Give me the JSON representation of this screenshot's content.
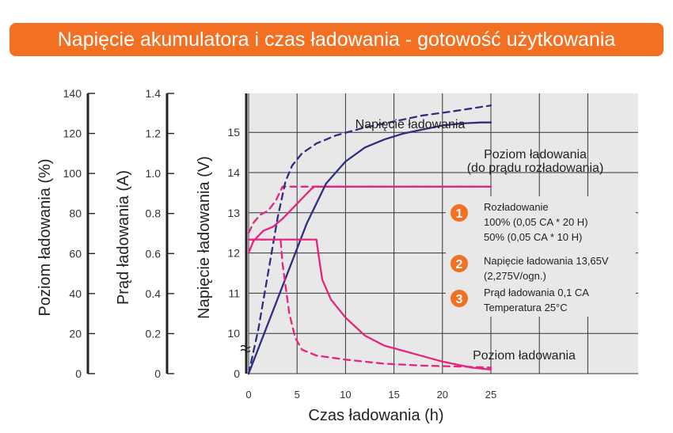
{
  "header": {
    "title": "Napięcie akumulatora i czas ładowania - gotowość użytkowania"
  },
  "colors": {
    "banner": "#f36f21",
    "magenta": "#e6247f",
    "navy": "#2e2f7f",
    "grid": "#e8e8e8",
    "badge": "#f36f21"
  },
  "chart_data": {
    "type": "line",
    "xlabel": "Czas ładowania (h)",
    "x_ticks": [
      "0",
      "5",
      "10",
      "15",
      "20",
      "25"
    ],
    "xlim": [
      0,
      25
    ],
    "axes": {
      "level": {
        "label": "Poziom ładowania (%)",
        "ticks": [
          "0",
          "20",
          "40",
          "60",
          "80",
          "100",
          "120",
          "140"
        ],
        "range": [
          0,
          140
        ]
      },
      "current": {
        "label": "Prąd ładowania (A)",
        "ticks": [
          "0",
          "0.2",
          "0.4",
          "0.6",
          "0.8",
          "1.0",
          "1.2",
          "1.4"
        ],
        "range": [
          0,
          1.4
        ]
      },
      "voltage": {
        "label": "Napięcie ładowania (V)",
        "ticks": [
          "0",
          "10",
          "11",
          "12",
          "13",
          "14",
          "15"
        ],
        "range": [
          9,
          15
        ],
        "axis_break": true
      }
    },
    "annotations": {
      "voltage_curve": "Napięcie ładowania",
      "level_curve_1": "Poziom ładowania",
      "level_curve_2": "(do prądu rozładowania)",
      "current_curve": "Poziom ładowania"
    },
    "legend": [
      {
        "num": "1",
        "lines": [
          "Rozładowanie",
          "100% (0,05 CA * 20 H)",
          "50% (0,05 CA * 10 H)"
        ]
      },
      {
        "num": "2",
        "lines": [
          "Napięcie ładowania 13,65V",
          "(2,275V/ogn.)"
        ]
      },
      {
        "num": "3",
        "lines": [
          "Prąd ładowania 0,1 CA",
          "Temperatura 25°C"
        ]
      }
    ],
    "series": [
      {
        "style": "magenta-solid",
        "axis": "voltage",
        "points": [
          [
            0,
            12.0
          ],
          [
            0.5,
            12.3
          ],
          [
            1.5,
            12.55
          ],
          [
            2.5,
            12.65
          ],
          [
            3.5,
            12.85
          ],
          [
            4.5,
            13.1
          ],
          [
            5.5,
            13.35
          ],
          [
            6.5,
            13.6
          ],
          [
            6.8,
            13.65
          ],
          [
            25,
            13.65
          ]
        ]
      },
      {
        "style": "magenta-dashed",
        "axis": "voltage",
        "points": [
          [
            0,
            12.5
          ],
          [
            0.5,
            12.75
          ],
          [
            1.2,
            12.95
          ],
          [
            2,
            13.05
          ],
          [
            2.8,
            13.3
          ],
          [
            3.5,
            13.65
          ],
          [
            25,
            13.65
          ]
        ]
      },
      {
        "style": "navy-solid",
        "axis": "level",
        "points": [
          [
            0,
            0
          ],
          [
            2,
            25
          ],
          [
            4,
            50
          ],
          [
            6,
            75
          ],
          [
            7.2,
            87
          ],
          [
            8,
            95
          ],
          [
            10,
            106
          ],
          [
            12,
            113
          ],
          [
            14,
            117
          ],
          [
            16,
            120
          ],
          [
            18,
            122
          ],
          [
            20,
            124
          ],
          [
            22,
            125
          ],
          [
            24,
            125.5
          ],
          [
            25,
            125.5
          ]
        ]
      },
      {
        "style": "navy-dashed",
        "axis": "level",
        "points": [
          [
            0,
            0
          ],
          [
            1,
            22
          ],
          [
            2,
            50
          ],
          [
            3,
            78
          ],
          [
            3.8,
            96
          ],
          [
            4.5,
            104
          ],
          [
            5.5,
            110
          ],
          [
            7,
            115
          ],
          [
            9,
            119
          ],
          [
            12,
            123
          ],
          [
            15,
            126
          ],
          [
            18,
            129
          ],
          [
            21,
            131
          ],
          [
            25,
            134
          ]
        ]
      },
      {
        "style": "magenta-solid",
        "axis": "current",
        "points": [
          [
            0,
            0.67
          ],
          [
            7,
            0.67
          ],
          [
            7.2,
            0.6
          ],
          [
            7.6,
            0.47
          ],
          [
            8.5,
            0.37
          ],
          [
            10,
            0.28
          ],
          [
            12,
            0.19
          ],
          [
            14,
            0.14
          ],
          [
            17,
            0.1
          ],
          [
            20,
            0.06
          ],
          [
            23,
            0.03
          ],
          [
            25,
            0.02
          ]
        ]
      },
      {
        "style": "magenta-dashed",
        "axis": "current",
        "points": [
          [
            0,
            0.67
          ],
          [
            3.3,
            0.67
          ],
          [
            3.5,
            0.55
          ],
          [
            4.2,
            0.3
          ],
          [
            4.8,
            0.18
          ],
          [
            5.5,
            0.12
          ],
          [
            7,
            0.09
          ],
          [
            10,
            0.07
          ],
          [
            14,
            0.05
          ],
          [
            18,
            0.04
          ],
          [
            22,
            0.035
          ],
          [
            25,
            0.03
          ]
        ]
      }
    ]
  }
}
